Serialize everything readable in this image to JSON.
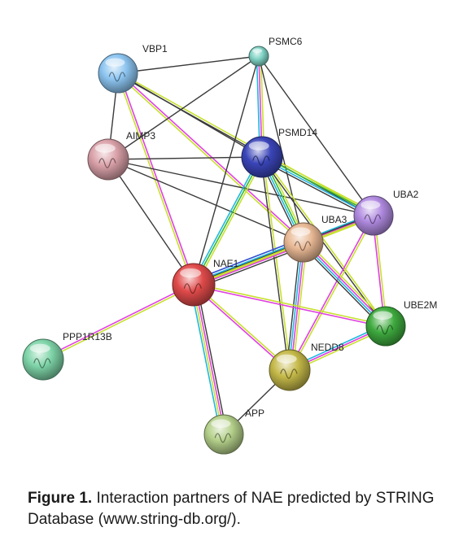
{
  "figure": {
    "label": "Figure 1.",
    "caption": "Interaction partners of NAE predicted by STRING Database (www.string-db.org/)."
  },
  "edge_colors": {
    "black": "#3a3a3a",
    "magenta": "#e040e0",
    "yellow": "#c8e030",
    "green": "#38b838",
    "cyan": "#20b8e0",
    "blue": "#3050d0"
  },
  "nodes": [
    {
      "id": "VBP1",
      "label": "VBP1",
      "color": "#8cc4f0"
    },
    {
      "id": "PSMC6",
      "label": "PSMC6",
      "color": "#7fd2c4"
    },
    {
      "id": "AIMP3",
      "label": "AIMP3",
      "color": "#d9a0a8"
    },
    {
      "id": "PSMD14",
      "label": "PSMD14",
      "color": "#3a45b8"
    },
    {
      "id": "UBA2",
      "label": "UBA2",
      "color": "#b08ae0"
    },
    {
      "id": "UBA3",
      "label": "UBA3",
      "color": "#e8b894"
    },
    {
      "id": "NAE1",
      "label": "NAE1",
      "color": "#e04a4a"
    },
    {
      "id": "UBE2M",
      "label": "UBE2M",
      "color": "#3eaa3e"
    },
    {
      "id": "PPP1R13B",
      "label": "PPP1R13B",
      "color": "#7ed4a8"
    },
    {
      "id": "NEDD8",
      "label": "NEDD8",
      "color": "#c4b848"
    },
    {
      "id": "APP",
      "label": "APP",
      "color": "#b4d08a"
    }
  ],
  "edges": [
    {
      "source": "VBP1",
      "target": "PSMC6",
      "colors": [
        "black"
      ]
    },
    {
      "source": "VBP1",
      "target": "AIMP3",
      "colors": [
        "black"
      ]
    },
    {
      "source": "VBP1",
      "target": "PSMD14",
      "colors": [
        "black"
      ]
    },
    {
      "source": "VBP1",
      "target": "UBA3",
      "colors": [
        "magenta",
        "yellow"
      ]
    },
    {
      "source": "VBP1",
      "target": "NAE1",
      "colors": [
        "magenta",
        "yellow"
      ]
    },
    {
      "source": "VBP1",
      "target": "UBA2",
      "colors": [
        "yellow",
        "black"
      ]
    },
    {
      "source": "PSMC6",
      "target": "AIMP3",
      "colors": [
        "black"
      ]
    },
    {
      "source": "PSMC6",
      "target": "PSMD14",
      "colors": [
        "yellow",
        "magenta",
        "cyan"
      ]
    },
    {
      "source": "PSMC6",
      "target": "NAE1",
      "colors": [
        "black"
      ]
    },
    {
      "source": "PSMC6",
      "target": "UBA2",
      "colors": [
        "black"
      ]
    },
    {
      "source": "PSMC6",
      "target": "UBA3",
      "colors": [
        "black"
      ]
    },
    {
      "source": "AIMP3",
      "target": "PSMD14",
      "colors": [
        "black"
      ]
    },
    {
      "source": "AIMP3",
      "target": "UBA2",
      "colors": [
        "black"
      ]
    },
    {
      "source": "AIMP3",
      "target": "UBA3",
      "colors": [
        "black"
      ]
    },
    {
      "source": "AIMP3",
      "target": "NAE1",
      "colors": [
        "black"
      ]
    },
    {
      "source": "PSMD14",
      "target": "UBA2",
      "colors": [
        "yellow",
        "green",
        "cyan",
        "black"
      ]
    },
    {
      "source": "PSMD14",
      "target": "UBA3",
      "colors": [
        "yellow",
        "green",
        "cyan",
        "black"
      ]
    },
    {
      "source": "PSMD14",
      "target": "NAE1",
      "colors": [
        "yellow",
        "green",
        "cyan"
      ]
    },
    {
      "source": "PSMD14",
      "target": "UBE2M",
      "colors": [
        "yellow",
        "black"
      ]
    },
    {
      "source": "PSMD14",
      "target": "NEDD8",
      "colors": [
        "yellow",
        "black"
      ]
    },
    {
      "source": "UBA2",
      "target": "UBA3",
      "colors": [
        "yellow",
        "magenta",
        "cyan"
      ]
    },
    {
      "source": "UBA2",
      "target": "NAE1",
      "colors": [
        "yellow",
        "black"
      ]
    },
    {
      "source": "UBA2",
      "target": "UBE2M",
      "colors": [
        "yellow",
        "magenta"
      ]
    },
    {
      "source": "UBA2",
      "target": "NEDD8",
      "colors": [
        "yellow",
        "magenta"
      ]
    },
    {
      "source": "UBA3",
      "target": "NAE1",
      "colors": [
        "black",
        "magenta",
        "yellow",
        "cyan",
        "blue"
      ]
    },
    {
      "source": "UBA3",
      "target": "UBE2M",
      "colors": [
        "yellow",
        "magenta",
        "cyan",
        "black"
      ]
    },
    {
      "source": "UBA3",
      "target": "NEDD8",
      "colors": [
        "yellow",
        "magenta",
        "cyan",
        "black"
      ]
    },
    {
      "source": "NAE1",
      "target": "UBE2M",
      "colors": [
        "yellow",
        "magenta"
      ]
    },
    {
      "source": "NAE1",
      "target": "NEDD8",
      "colors": [
        "yellow",
        "magenta"
      ]
    },
    {
      "source": "NAE1",
      "target": "PPP1R13B",
      "colors": [
        "yellow",
        "magenta"
      ]
    },
    {
      "source": "NAE1",
      "target": "APP",
      "colors": [
        "black",
        "magenta",
        "yellow",
        "cyan"
      ]
    },
    {
      "source": "UBE2M",
      "target": "NEDD8",
      "colors": [
        "yellow",
        "magenta",
        "cyan"
      ]
    },
    {
      "source": "NEDD8",
      "target": "APP",
      "colors": [
        "black"
      ]
    }
  ]
}
